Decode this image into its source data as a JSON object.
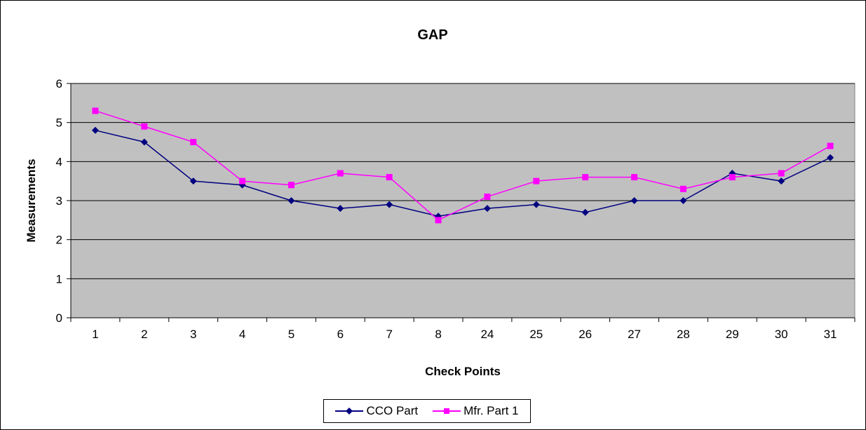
{
  "chart_data": {
    "type": "line",
    "title": "GAP",
    "xlabel": "Check Points",
    "ylabel": "Measurements",
    "categories": [
      "1",
      "2",
      "3",
      "4",
      "5",
      "6",
      "7",
      "8",
      "24",
      "25",
      "26",
      "27",
      "28",
      "29",
      "30",
      "31"
    ],
    "ylim": [
      0,
      6
    ],
    "yticks": [
      "0",
      "1",
      "2",
      "3",
      "4",
      "5",
      "6"
    ],
    "grid": true,
    "legend_position": "bottom",
    "series": [
      {
        "name": "CCO Part",
        "color": "#000080",
        "marker": "diamond",
        "values": [
          4.8,
          4.5,
          3.5,
          3.4,
          3.0,
          2.8,
          2.9,
          2.6,
          2.8,
          2.9,
          2.7,
          3.0,
          3.0,
          3.7,
          3.5,
          4.1
        ]
      },
      {
        "name": "Mfr. Part 1",
        "color": "#FF00FF",
        "marker": "square",
        "values": [
          5.3,
          4.9,
          4.5,
          3.5,
          3.4,
          3.7,
          3.6,
          2.5,
          3.1,
          3.5,
          3.6,
          3.6,
          3.3,
          3.6,
          3.7,
          4.4
        ]
      }
    ],
    "plot_background": "#C0C0C0"
  }
}
